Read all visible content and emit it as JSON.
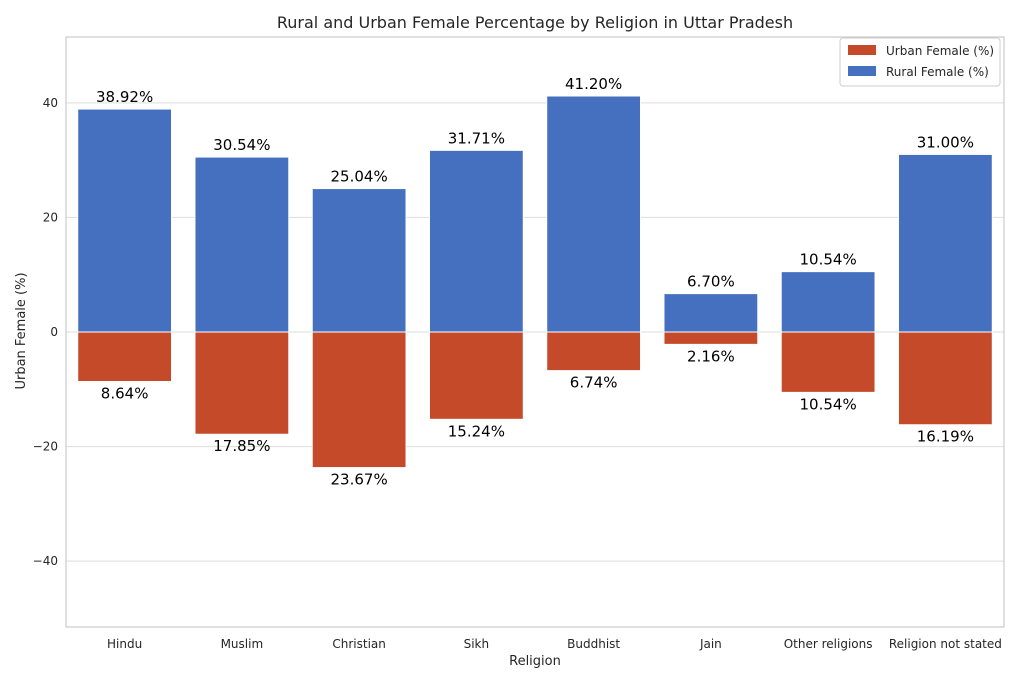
{
  "chart_data": {
    "type": "bar",
    "title": "Rural and Urban Female Percentage by Religion in Uttar Pradesh",
    "xlabel": "Religion",
    "ylabel": "Urban Female (%)",
    "categories": [
      "Hindu",
      "Muslim",
      "Christian",
      "Sikh",
      "Buddhist",
      "Jain",
      "Other religions",
      "Religion not stated"
    ],
    "series": [
      {
        "name": "Urban Female (%)",
        "color": "#C44A2A",
        "values": [
          -8.64,
          -17.85,
          -23.67,
          -15.24,
          -6.74,
          -2.16,
          -10.54,
          -16.19
        ],
        "labels": [
          "8.64%",
          "17.85%",
          "23.67%",
          "15.24%",
          "6.74%",
          "2.16%",
          "10.54%",
          "16.19%"
        ]
      },
      {
        "name": "Rural Female (%)",
        "color": "#4470BF",
        "values": [
          38.92,
          30.54,
          25.04,
          31.71,
          41.2,
          6.7,
          10.54,
          31.0
        ],
        "labels": [
          "38.92%",
          "30.54%",
          "25.04%",
          "31.71%",
          "41.20%",
          "6.70%",
          "10.54%",
          "31.00%"
        ]
      }
    ],
    "ylim": [
      -51.5,
      51.5
    ],
    "yticks": [
      -40,
      -20,
      0,
      20,
      40
    ],
    "ytick_labels": [
      "−40",
      "−20",
      "0",
      "20",
      "40"
    ],
    "grid": "horizontal",
    "legend_position": "top-right"
  }
}
